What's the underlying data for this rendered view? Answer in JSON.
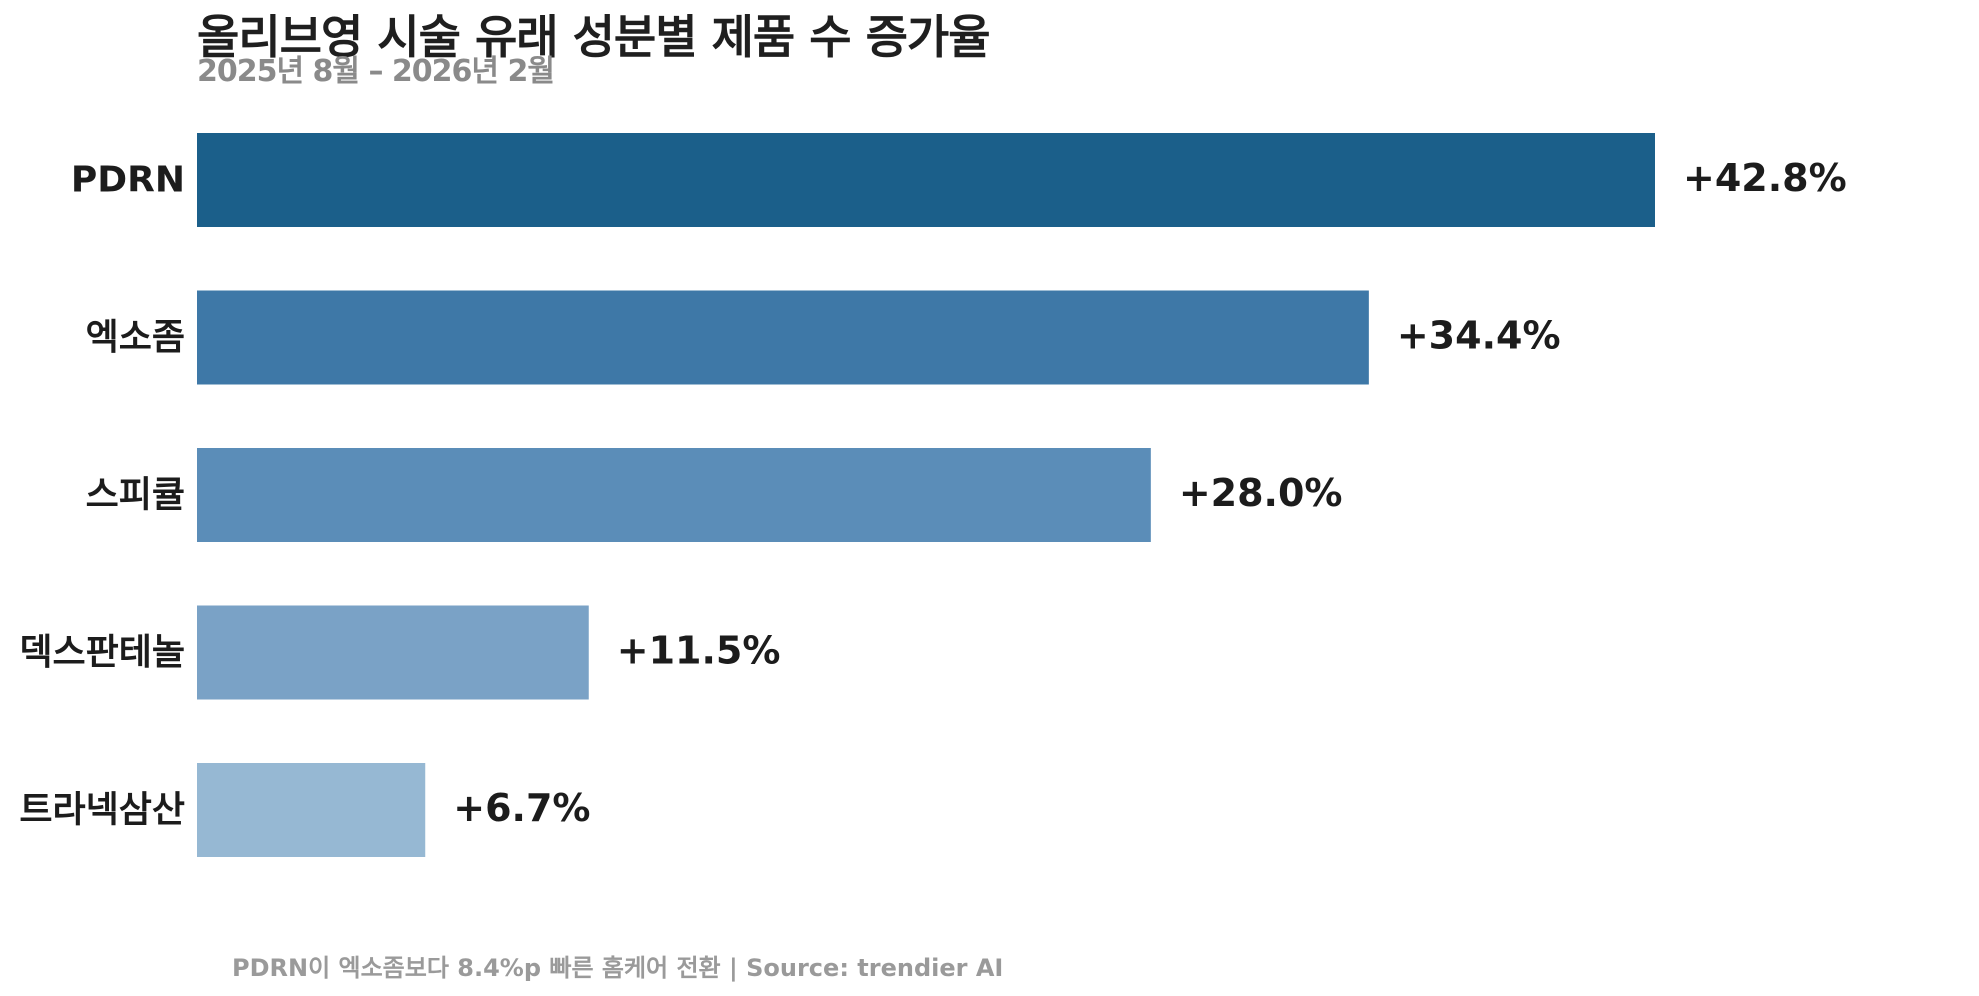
{
  "chart_data": {
    "type": "bar",
    "orientation": "horizontal",
    "title": "올리브영 시술 유래 성분별 제품 수 증가율",
    "subtitle": "2025년 8월 – 2026년 2월",
    "categories": [
      "PDRN",
      "엑소좀",
      "스피큘",
      "덱스판테놀",
      "트라넥삼산"
    ],
    "values": [
      42.8,
      34.4,
      28.0,
      11.5,
      6.7
    ],
    "value_labels": [
      "+42.8%",
      "+34.4%",
      "+28.0%",
      "+11.5%",
      "+6.7%"
    ],
    "bar_colors": [
      "#1b5f8a",
      "#3e78a7",
      "#5b8db8",
      "#7aa2c6",
      "#96b8d3"
    ],
    "xlim": [
      0,
      50
    ],
    "grid": false,
    "legend": "none",
    "footnote": "PDRN이 엑소좀보다 8.4%p 빠른 홈케어 전환 | Source: trendier AI"
  }
}
